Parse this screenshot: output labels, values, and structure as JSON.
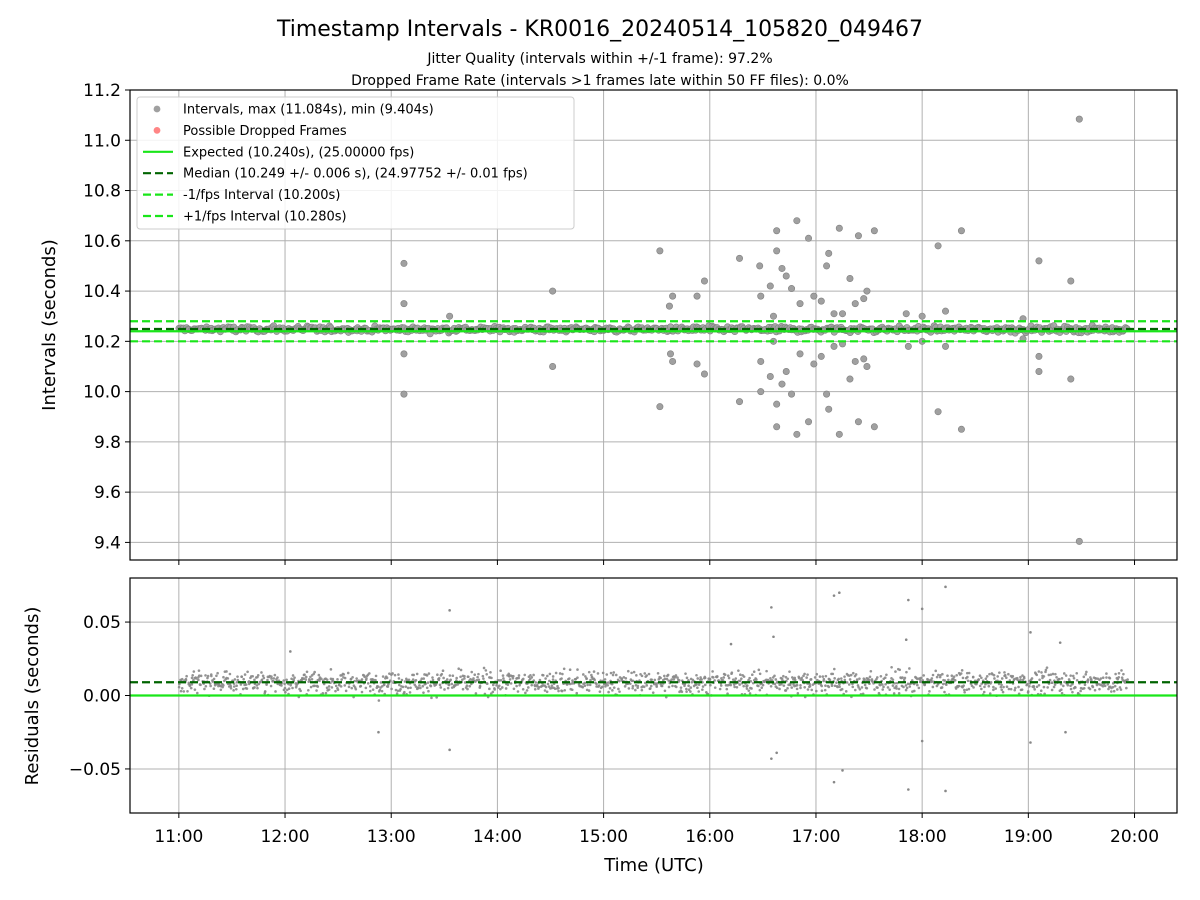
{
  "title": "Timestamp Intervals - KR0016_20240514_105820_049467",
  "subtitle_1": "Jitter Quality (intervals within +/-1 frame): 97.2%",
  "subtitle_2": "Dropped Frame Rate (intervals >1 frames late within 50 FF files): 0.0%",
  "colors": {
    "points": "#888888",
    "dropped": "#ff6666",
    "expected": "#19e619",
    "median": "#006400",
    "interval_band": "#19e619",
    "grid": "#b0b0b0"
  },
  "chart_data": [
    {
      "type": "scatter",
      "panel": "top",
      "ylabel": "Intervals (seconds)",
      "ylim": [
        9.33,
        11.2
      ],
      "yticks": [
        9.4,
        9.6,
        9.8,
        10.0,
        10.2,
        10.4,
        10.6,
        10.8,
        11.0,
        11.2
      ],
      "ytick_labels": [
        "9.4",
        "9.6",
        "9.8",
        "10.0",
        "10.2",
        "10.4",
        "10.6",
        "10.8",
        "11.0",
        "11.2"
      ],
      "xlim": [
        10.54,
        20.4
      ],
      "grid": true,
      "legend_position": "upper-left",
      "legend": [
        {
          "label": "Intervals, max (11.084s), min (9.404s)",
          "kind": "marker",
          "color": "#888888"
        },
        {
          "label": "Possible Dropped Frames",
          "kind": "marker",
          "color": "#ff6666"
        },
        {
          "label": "Expected (10.240s), (25.00000 fps)",
          "kind": "solid",
          "color": "#19e619"
        },
        {
          "label": "Median (10.249 +/- 0.006 s), (24.97752 +/- 0.01 fps)",
          "kind": "dashed",
          "color": "#006400"
        },
        {
          "label": "-1/fps Interval (10.200s)",
          "kind": "dashed",
          "color": "#19e619"
        },
        {
          "label": "+1/fps Interval (10.280s)",
          "kind": "dashed",
          "color": "#19e619"
        }
      ],
      "reference_lines": {
        "expected": 10.24,
        "median": 10.249,
        "lower": 10.2,
        "upper": 10.28
      },
      "dense_band": {
        "x_start": 11.0,
        "x_end": 19.93,
        "center": 10.248,
        "spread": 0.018
      },
      "outliers": [
        {
          "x": 13.12,
          "y": 10.51
        },
        {
          "x": 13.12,
          "y": 10.35
        },
        {
          "x": 13.12,
          "y": 10.15
        },
        {
          "x": 13.12,
          "y": 9.99
        },
        {
          "x": 13.55,
          "y": 10.3
        },
        {
          "x": 14.52,
          "y": 10.4
        },
        {
          "x": 14.52,
          "y": 10.1
        },
        {
          "x": 15.53,
          "y": 10.56
        },
        {
          "x": 15.53,
          "y": 9.94
        },
        {
          "x": 15.62,
          "y": 10.34
        },
        {
          "x": 15.63,
          "y": 10.15
        },
        {
          "x": 15.65,
          "y": 10.38
        },
        {
          "x": 15.65,
          "y": 10.12
        },
        {
          "x": 15.88,
          "y": 10.38
        },
        {
          "x": 15.88,
          "y": 10.11
        },
        {
          "x": 15.95,
          "y": 10.44
        },
        {
          "x": 15.95,
          "y": 10.07
        },
        {
          "x": 16.28,
          "y": 10.53
        },
        {
          "x": 16.28,
          "y": 9.96
        },
        {
          "x": 16.47,
          "y": 10.5
        },
        {
          "x": 16.48,
          "y": 10.38
        },
        {
          "x": 16.48,
          "y": 10.12
        },
        {
          "x": 16.48,
          "y": 10.0
        },
        {
          "x": 16.57,
          "y": 10.42
        },
        {
          "x": 16.57,
          "y": 10.06
        },
        {
          "x": 16.6,
          "y": 10.3
        },
        {
          "x": 16.6,
          "y": 10.2
        },
        {
          "x": 16.63,
          "y": 10.64
        },
        {
          "x": 16.63,
          "y": 10.56
        },
        {
          "x": 16.63,
          "y": 9.95
        },
        {
          "x": 16.63,
          "y": 9.86
        },
        {
          "x": 16.68,
          "y": 10.49
        },
        {
          "x": 16.68,
          "y": 10.03
        },
        {
          "x": 16.72,
          "y": 10.46
        },
        {
          "x": 16.72,
          "y": 10.08
        },
        {
          "x": 16.77,
          "y": 10.41
        },
        {
          "x": 16.77,
          "y": 9.99
        },
        {
          "x": 16.82,
          "y": 10.68
        },
        {
          "x": 16.82,
          "y": 9.83
        },
        {
          "x": 16.85,
          "y": 10.35
        },
        {
          "x": 16.85,
          "y": 10.15
        },
        {
          "x": 16.93,
          "y": 10.61
        },
        {
          "x": 16.93,
          "y": 9.88
        },
        {
          "x": 16.98,
          "y": 10.38
        },
        {
          "x": 16.98,
          "y": 10.11
        },
        {
          "x": 17.05,
          "y": 10.36
        },
        {
          "x": 17.05,
          "y": 10.14
        },
        {
          "x": 17.1,
          "y": 10.5
        },
        {
          "x": 17.1,
          "y": 9.99
        },
        {
          "x": 17.12,
          "y": 10.55
        },
        {
          "x": 17.12,
          "y": 9.93
        },
        {
          "x": 17.17,
          "y": 10.31
        },
        {
          "x": 17.17,
          "y": 10.18
        },
        {
          "x": 17.22,
          "y": 10.65
        },
        {
          "x": 17.22,
          "y": 9.83
        },
        {
          "x": 17.25,
          "y": 10.31
        },
        {
          "x": 17.25,
          "y": 10.19
        },
        {
          "x": 17.32,
          "y": 10.45
        },
        {
          "x": 17.32,
          "y": 10.05
        },
        {
          "x": 17.37,
          "y": 10.35
        },
        {
          "x": 17.37,
          "y": 10.12
        },
        {
          "x": 17.4,
          "y": 10.62
        },
        {
          "x": 17.4,
          "y": 9.88
        },
        {
          "x": 17.45,
          "y": 10.37
        },
        {
          "x": 17.45,
          "y": 10.13
        },
        {
          "x": 17.48,
          "y": 10.4
        },
        {
          "x": 17.48,
          "y": 10.1
        },
        {
          "x": 17.55,
          "y": 10.64
        },
        {
          "x": 17.55,
          "y": 9.86
        },
        {
          "x": 17.85,
          "y": 10.31
        },
        {
          "x": 17.87,
          "y": 10.18
        },
        {
          "x": 18.0,
          "y": 10.3
        },
        {
          "x": 18.0,
          "y": 10.2
        },
        {
          "x": 18.15,
          "y": 10.58
        },
        {
          "x": 18.15,
          "y": 9.92
        },
        {
          "x": 18.22,
          "y": 10.32
        },
        {
          "x": 18.22,
          "y": 10.18
        },
        {
          "x": 18.37,
          "y": 10.64
        },
        {
          "x": 18.37,
          "y": 9.85
        },
        {
          "x": 18.95,
          "y": 10.29
        },
        {
          "x": 18.95,
          "y": 10.21
        },
        {
          "x": 19.1,
          "y": 10.52
        },
        {
          "x": 19.1,
          "y": 10.14
        },
        {
          "x": 19.1,
          "y": 10.08
        },
        {
          "x": 19.4,
          "y": 10.44
        },
        {
          "x": 19.4,
          "y": 10.05
        },
        {
          "x": 19.48,
          "y": 11.084
        },
        {
          "x": 19.48,
          "y": 9.404
        }
      ]
    },
    {
      "type": "scatter",
      "panel": "bottom",
      "ylabel": "Residuals (seconds)",
      "ylim": [
        -0.08,
        0.08
      ],
      "yticks": [
        -0.05,
        0.0,
        0.05
      ],
      "ytick_labels": [
        "−0.05",
        "0.00",
        "0.05"
      ],
      "xlim": [
        10.54,
        20.4
      ],
      "xlabel": "Time (UTC)",
      "xticks": [
        11,
        12,
        13,
        14,
        15,
        16,
        17,
        18,
        19,
        20
      ],
      "xtick_labels": [
        "11:00",
        "12:00",
        "13:00",
        "14:00",
        "15:00",
        "16:00",
        "17:00",
        "18:00",
        "19:00",
        "20:00"
      ],
      "grid": true,
      "reference_lines": {
        "expected": 0.0,
        "median": 0.009
      },
      "dense_band": {
        "x_start": 11.0,
        "x_end": 19.93,
        "center": 0.009,
        "spread": 0.012
      },
      "outliers": [
        {
          "x": 13.55,
          "y": 0.058
        },
        {
          "x": 13.55,
          "y": -0.037
        },
        {
          "x": 16.58,
          "y": 0.06
        },
        {
          "x": 16.58,
          "y": -0.043
        },
        {
          "x": 16.63,
          "y": -0.039
        },
        {
          "x": 17.17,
          "y": 0.068
        },
        {
          "x": 17.22,
          "y": 0.07
        },
        {
          "x": 17.17,
          "y": -0.059
        },
        {
          "x": 17.25,
          "y": -0.051
        },
        {
          "x": 17.87,
          "y": 0.065
        },
        {
          "x": 17.87,
          "y": -0.064
        },
        {
          "x": 18.0,
          "y": 0.059
        },
        {
          "x": 18.0,
          "y": -0.031
        },
        {
          "x": 18.22,
          "y": 0.074
        },
        {
          "x": 18.22,
          "y": -0.065
        },
        {
          "x": 12.88,
          "y": -0.025
        },
        {
          "x": 12.05,
          "y": 0.03
        },
        {
          "x": 19.02,
          "y": 0.043
        },
        {
          "x": 19.02,
          "y": -0.032
        },
        {
          "x": 19.35,
          "y": -0.025
        },
        {
          "x": 19.3,
          "y": 0.036
        },
        {
          "x": 16.2,
          "y": 0.035
        },
        {
          "x": 16.6,
          "y": 0.04
        },
        {
          "x": 17.85,
          "y": 0.038
        }
      ]
    }
  ]
}
